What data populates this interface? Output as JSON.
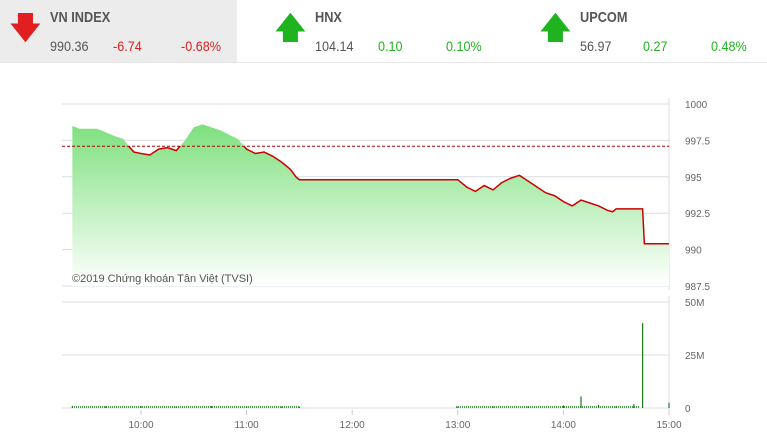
{
  "indices": [
    {
      "name": "VN INDEX",
      "value": "990.36",
      "change": "-6.74",
      "pct": "-0.68%",
      "direction": "down",
      "color": "#e02020",
      "icon": "arrow-down-icon"
    },
    {
      "name": "HNX",
      "value": "104.14",
      "change": "0.10",
      "pct": "0.10%",
      "direction": "up",
      "color": "#1fb41f",
      "icon": "arrow-up-icon"
    },
    {
      "name": "UPCOM",
      "value": "56.97",
      "change": "0.27",
      "pct": "0.48%",
      "direction": "up",
      "color": "#1fb41f",
      "icon": "arrow-up-icon"
    }
  ],
  "chart_data": [
    {
      "type": "area",
      "title": "",
      "reference": 997.1,
      "ylim": [
        987.5,
        1000
      ],
      "yticks": [
        "1000",
        "997.5",
        "995",
        "992.5",
        "990",
        "987.5"
      ],
      "watermark": "©2019 Chứng khoán Tân Việt (TVSI)",
      "colors": {
        "line_below": "#cc0000",
        "fill": "#7ee07e",
        "reference": "#b00000"
      },
      "points": [
        [
          "9:21",
          998.5
        ],
        [
          "9:25",
          998.3
        ],
        [
          "9:35",
          998.3
        ],
        [
          "9:45",
          997.8
        ],
        [
          "9:50",
          997.6
        ],
        [
          "9:53",
          997.1
        ],
        [
          "9:56",
          996.7
        ],
        [
          "10:00",
          996.6
        ],
        [
          "10:05",
          996.5
        ],
        [
          "10:10",
          996.9
        ],
        [
          "10:15",
          997.0
        ],
        [
          "10:20",
          996.8
        ],
        [
          "10:25",
          997.5
        ],
        [
          "10:30",
          998.4
        ],
        [
          "10:35",
          998.6
        ],
        [
          "10:45",
          998.2
        ],
        [
          "10:55",
          997.6
        ],
        [
          "11:00",
          996.9
        ],
        [
          "11:05",
          996.6
        ],
        [
          "11:10",
          996.7
        ],
        [
          "11:15",
          996.4
        ],
        [
          "11:20",
          996.0
        ],
        [
          "11:25",
          995.5
        ],
        [
          "11:28",
          995.0
        ],
        [
          "11:30",
          994.8
        ],
        [
          "13:00",
          994.8
        ],
        [
          "13:05",
          994.3
        ],
        [
          "13:10",
          994.0
        ],
        [
          "13:15",
          994.4
        ],
        [
          "13:20",
          994.1
        ],
        [
          "13:25",
          994.6
        ],
        [
          "13:30",
          994.9
        ],
        [
          "13:35",
          995.1
        ],
        [
          "13:40",
          994.7
        ],
        [
          "13:45",
          994.3
        ],
        [
          "13:50",
          993.9
        ],
        [
          "13:55",
          993.7
        ],
        [
          "14:00",
          993.3
        ],
        [
          "14:05",
          993.0
        ],
        [
          "14:10",
          993.4
        ],
        [
          "14:15",
          993.2
        ],
        [
          "14:20",
          993.0
        ],
        [
          "14:25",
          992.7
        ],
        [
          "14:28",
          992.6
        ],
        [
          "14:30",
          992.8
        ],
        [
          "14:45",
          992.8
        ],
        [
          "14:46",
          990.4
        ],
        [
          "15:00",
          990.4
        ]
      ]
    },
    {
      "type": "bar",
      "title": "",
      "ylim": [
        0,
        50
      ],
      "yticks": [
        "50M",
        "25M",
        "0"
      ],
      "xticks": [
        "10:00",
        "11:00",
        "12:00",
        "13:00",
        "14:00",
        "15:00"
      ],
      "color": "#1a7a1a",
      "volume_m": [
        [
          "9:21",
          1.0
        ],
        [
          "9:40",
          0.8
        ],
        [
          "10:00",
          0.9
        ],
        [
          "10:20",
          0.7
        ],
        [
          "10:40",
          0.9
        ],
        [
          "11:00",
          0.8
        ],
        [
          "11:20",
          0.7
        ],
        [
          "11:30",
          0.6
        ],
        [
          "13:00",
          0.6
        ],
        [
          "13:20",
          0.8
        ],
        [
          "13:40",
          0.9
        ],
        [
          "14:00",
          1.2
        ],
        [
          "14:10",
          5.5
        ],
        [
          "14:20",
          1.5
        ],
        [
          "14:30",
          1.0
        ],
        [
          "14:40",
          1.8
        ],
        [
          "14:45",
          40
        ],
        [
          "15:00",
          2.5
        ]
      ]
    }
  ]
}
